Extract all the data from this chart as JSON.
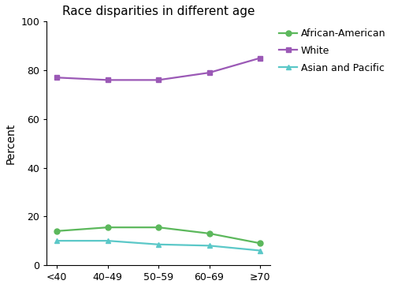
{
  "title": "Race disparities in different age",
  "xlabel": "",
  "ylabel": "Percent",
  "categories": [
    "<40",
    "40–49",
    "50–59",
    "60–69",
    "≥70"
  ],
  "series": [
    {
      "label": "African-American",
      "values": [
        14,
        15.5,
        15.5,
        13,
        9
      ],
      "color": "#5cb85c",
      "marker": "o",
      "markersize": 5
    },
    {
      "label": "White",
      "values": [
        77,
        76,
        76,
        79,
        85
      ],
      "color": "#9b59b6",
      "marker": "s",
      "markersize": 5
    },
    {
      "label": "Asian and Pacific",
      "values": [
        10,
        10,
        8.5,
        8,
        6
      ],
      "color": "#5bc8c8",
      "marker": "^",
      "markersize": 5
    }
  ],
  "ylim": [
    0,
    100
  ],
  "yticks": [
    0,
    20,
    40,
    60,
    80,
    100
  ],
  "background_color": "#ffffff",
  "linewidth": 1.6,
  "title_fontsize": 11,
  "axis_fontsize": 9,
  "legend_fontsize": 9
}
